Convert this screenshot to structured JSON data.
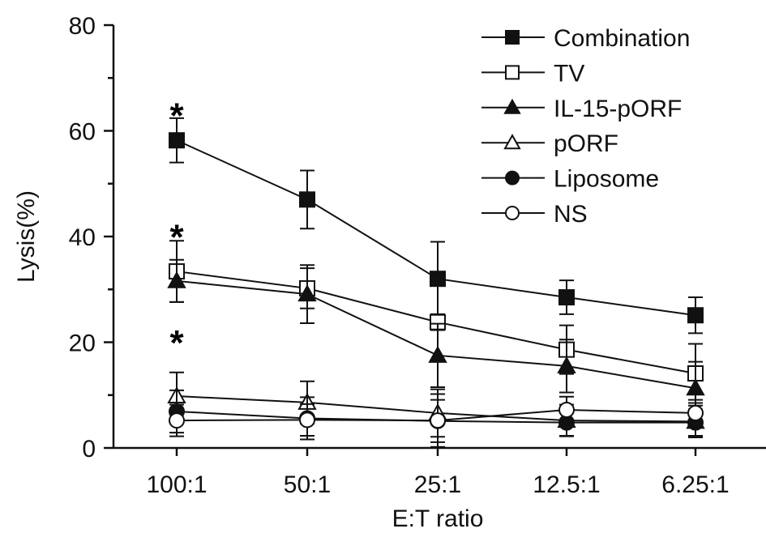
{
  "chart_data": {
    "type": "line",
    "title": "",
    "xlabel": "E:T ratio",
    "ylabel": "Lysis(%)",
    "categories": [
      "100:1",
      "50:1",
      "25:1",
      "12.5:1",
      "6.25:1"
    ],
    "ylim": [
      0,
      80
    ],
    "yticks": [
      "0",
      "20",
      "40",
      "60",
      "80"
    ],
    "grid": false,
    "legend_position": "top-right",
    "series": [
      {
        "name": "Combination",
        "marker": "square-filled",
        "values": [
          58.2,
          47.0,
          32.0,
          28.5,
          25.1
        ],
        "errors": [
          4.2,
          5.5,
          7.0,
          3.2,
          3.4
        ]
      },
      {
        "name": "TV",
        "marker": "square-open",
        "values": [
          33.4,
          30.2,
          23.8,
          18.6,
          14.1
        ],
        "errors": [
          5.8,
          3.8,
          1.5,
          4.6,
          5.6
        ]
      },
      {
        "name": "IL-15-pORF",
        "marker": "triangle-filled",
        "values": [
          31.6,
          29.1,
          17.5,
          15.5,
          11.3
        ],
        "errors": [
          4.0,
          5.5,
          6.0,
          5.0,
          5.0
        ]
      },
      {
        "name": "pORF",
        "marker": "triangle-open",
        "values": [
          9.8,
          8.6,
          6.6,
          5.2,
          5.0
        ],
        "errors": [
          4.5,
          4.0,
          4.5,
          3.0,
          3.0
        ]
      },
      {
        "name": "Liposome",
        "marker": "circle-filled",
        "values": [
          6.9,
          5.6,
          5.1,
          4.8,
          4.8
        ],
        "errors": [
          4.0,
          4.0,
          4.0,
          2.5,
          2.5
        ]
      },
      {
        "name": "NS",
        "marker": "circle-open",
        "values": [
          5.2,
          5.3,
          5.2,
          7.2,
          6.6
        ],
        "errors": [
          3.0,
          3.0,
          5.0,
          2.5,
          2.5
        ]
      }
    ],
    "annotations": [
      {
        "text": "*",
        "category": "100:1",
        "y": 64
      },
      {
        "text": "*",
        "category": "100:1",
        "y": 41
      },
      {
        "text": "*",
        "category": "100:1",
        "y": 21
      }
    ]
  }
}
